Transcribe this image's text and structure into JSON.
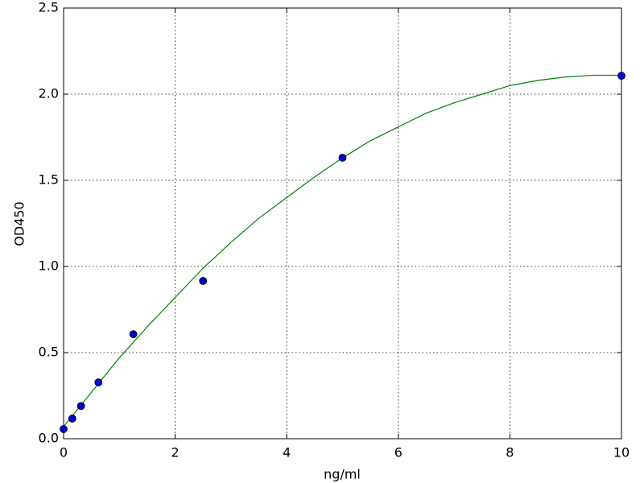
{
  "chart_data": {
    "type": "scatter",
    "xlabel": "ng/ml",
    "ylabel": "OD450",
    "xlim": [
      0,
      10
    ],
    "ylim": [
      0,
      2.5
    ],
    "xticks": [
      0,
      2,
      4,
      6,
      8,
      10
    ],
    "yticks": [
      {
        "value": 0,
        "label": "0.0"
      },
      0.5,
      {
        "value": 1,
        "label": "1.0"
      },
      1.5,
      {
        "value": 2,
        "label": "2.0"
      },
      2.5
    ],
    "grid": true,
    "series": [
      {
        "type": "scatter",
        "color": "#0000cc",
        "x": [
          0,
          0.156,
          0.3125,
          0.625,
          1.25,
          2.5,
          5,
          10
        ],
        "values": [
          0.056,
          0.117,
          0.19,
          0.327,
          0.607,
          0.916,
          1.631,
          2.107
        ]
      },
      {
        "type": "line",
        "color": "#008000",
        "x": [
          0,
          0.5,
          1,
          1.5,
          2,
          2.5,
          3,
          3.5,
          4,
          4.5,
          5,
          5.5,
          6,
          6.5,
          7,
          7.5,
          8,
          8.5,
          9,
          9.5,
          10
        ],
        "values": [
          0.07,
          0.27,
          0.47,
          0.65,
          0.82,
          0.99,
          1.14,
          1.28,
          1.4,
          1.52,
          1.63,
          1.73,
          1.81,
          1.89,
          1.95,
          2.0,
          2.05,
          2.08,
          2.1,
          2.11,
          2.11
        ]
      }
    ]
  }
}
